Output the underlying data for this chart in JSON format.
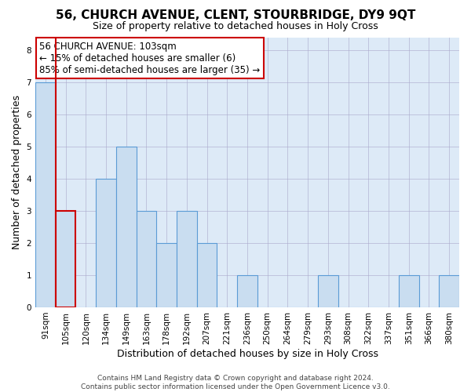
{
  "title": "56, CHURCH AVENUE, CLENT, STOURBRIDGE, DY9 9QT",
  "subtitle": "Size of property relative to detached houses in Holy Cross",
  "xlabel": "Distribution of detached houses by size in Holy Cross",
  "ylabel": "Number of detached properties",
  "bar_labels": [
    "91sqm",
    "105sqm",
    "120sqm",
    "134sqm",
    "149sqm",
    "163sqm",
    "178sqm",
    "192sqm",
    "207sqm",
    "221sqm",
    "236sqm",
    "250sqm",
    "264sqm",
    "279sqm",
    "293sqm",
    "308sqm",
    "322sqm",
    "337sqm",
    "351sqm",
    "366sqm",
    "380sqm"
  ],
  "bar_values": [
    7,
    3,
    0,
    4,
    5,
    3,
    2,
    3,
    2,
    0,
    1,
    0,
    0,
    0,
    1,
    0,
    0,
    0,
    1,
    0,
    1
  ],
  "bar_color": "#c9ddf0",
  "bar_edge_color": "#5b9bd5",
  "highlight_bar_index": 1,
  "highlight_edge_color": "#cc0000",
  "annotation_title": "56 CHURCH AVENUE: 103sqm",
  "annotation_line1": "← 15% of detached houses are smaller (6)",
  "annotation_line2": "85% of semi-detached houses are larger (35) →",
  "annotation_box_edge_color": "#cc0000",
  "ylim": [
    0,
    8.4
  ],
  "yticks": [
    0,
    1,
    2,
    3,
    4,
    5,
    6,
    7,
    8
  ],
  "footer_line1": "Contains HM Land Registry data © Crown copyright and database right 2024.",
  "footer_line2": "Contains public sector information licensed under the Open Government Licence v3.0.",
  "background_color": "#ffffff",
  "plot_bg_color": "#ddeaf7",
  "grid_color": "#aaaacc",
  "title_fontsize": 11,
  "subtitle_fontsize": 9,
  "axis_label_fontsize": 9,
  "tick_fontsize": 7.5,
  "annotation_fontsize": 8.5,
  "footer_fontsize": 6.5
}
